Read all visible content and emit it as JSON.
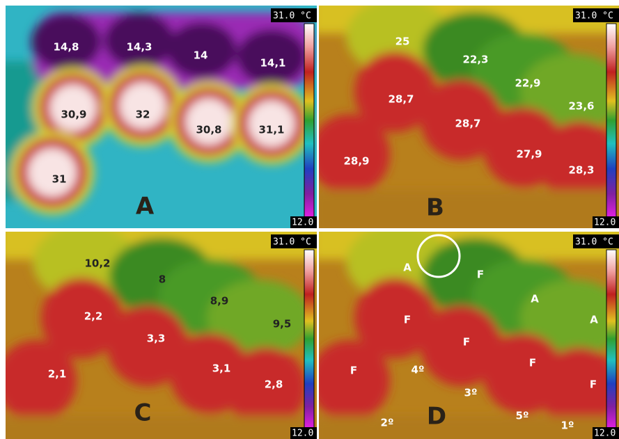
{
  "panels": [
    {
      "letter": "A",
      "scale_max": "31.0 °C",
      "scale_min": "12.0",
      "labels": [
        "14,8",
        "14,3",
        "14",
        "14,1",
        "30,9",
        "32",
        "30,8",
        "31,1",
        "31"
      ]
    },
    {
      "letter": "B",
      "scale_max": "31.0 °C",
      "scale_min": "12.0",
      "labels": [
        "25",
        "22,3",
        "22,9",
        "23,6",
        "28,7",
        "28,7",
        "28,9",
        "27,9",
        "28,3"
      ]
    },
    {
      "letter": "C",
      "scale_max": "31.0 °C",
      "scale_min": "12.0",
      "labels": [
        "10,2",
        "8",
        "8,9",
        "9,5",
        "2,2",
        "3,3",
        "2,1",
        "3,1",
        "2,8"
      ]
    },
    {
      "letter": "D",
      "scale_max": "31.0 °C",
      "scale_min": "12.0",
      "labels": [
        "A",
        "F",
        "A",
        "A",
        "F",
        "F",
        "F",
        "4º",
        "3º",
        "F",
        "F",
        "2º",
        "5º",
        "1º"
      ]
    }
  ]
}
